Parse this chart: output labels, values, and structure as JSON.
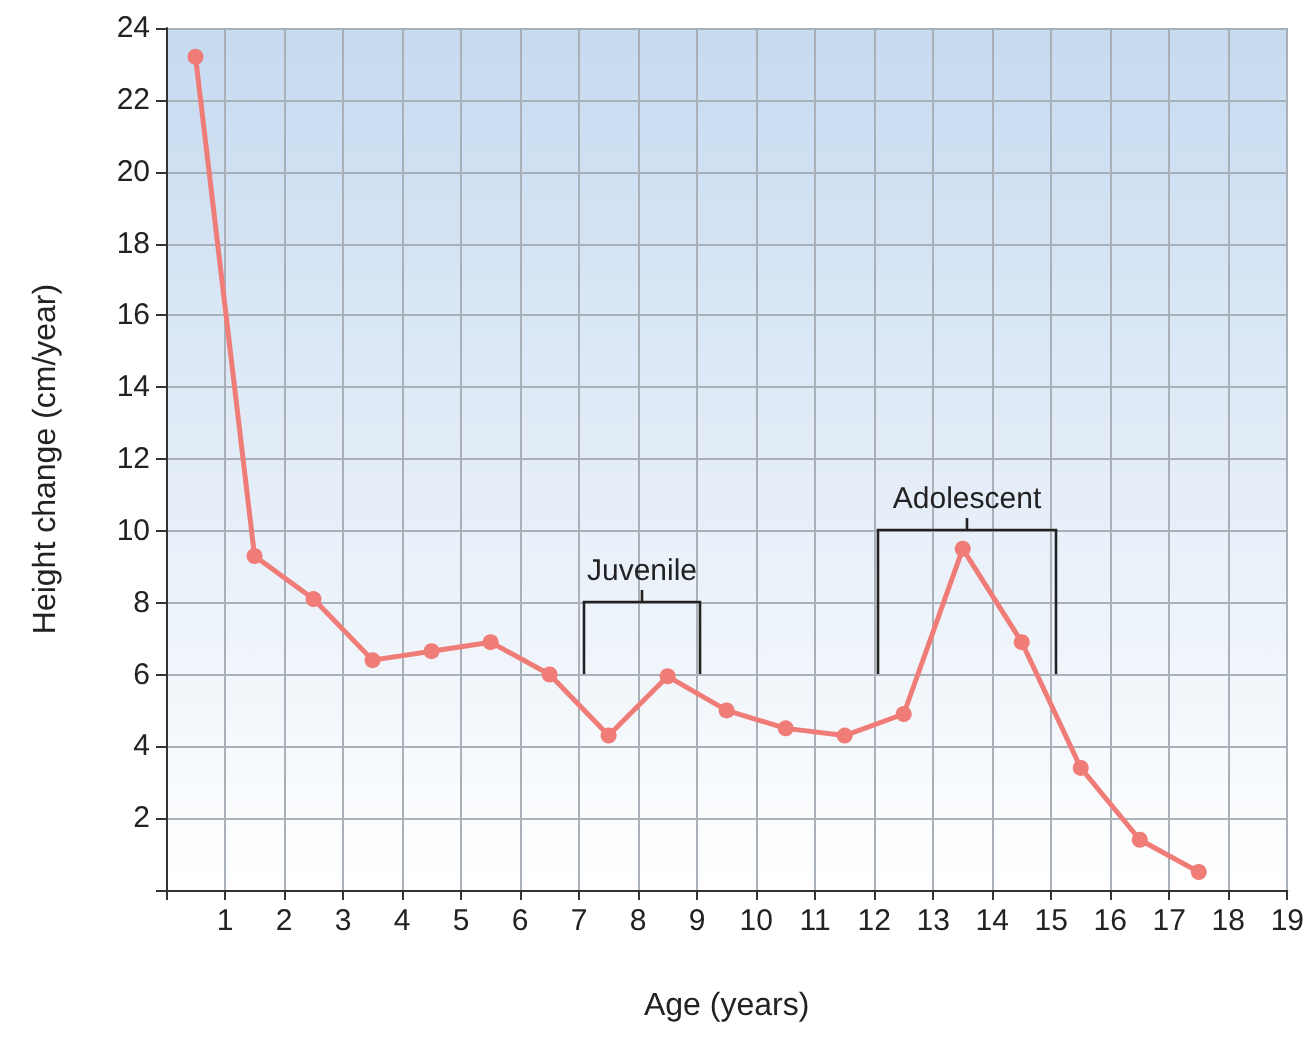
{
  "chart_data": {
    "type": "line",
    "xlabel": "Age (years)",
    "ylabel": "Height change (cm/year)",
    "x": [
      0.5,
      1.5,
      2.5,
      3.5,
      4.5,
      5.5,
      6.5,
      7.5,
      8.5,
      9.5,
      10.5,
      11.5,
      12.5,
      13.5,
      14.5,
      15.5,
      16.5,
      17.5
    ],
    "series": [
      {
        "color": "#f07c78",
        "values": [
          23.2,
          9.3,
          8.1,
          6.4,
          6.65,
          6.9,
          6.0,
          4.3,
          5.95,
          5.0,
          4.5,
          4.3,
          4.9,
          9.5,
          6.9,
          3.4,
          1.4,
          0.5
        ]
      }
    ],
    "xlim": [
      0,
      19
    ],
    "xticks": [
      {
        "value": 0,
        "label": null
      },
      1,
      2,
      3,
      4,
      5,
      6,
      7,
      8,
      9,
      10,
      11,
      12,
      13,
      14,
      15,
      16,
      17,
      18,
      19
    ],
    "ylim": [
      0,
      24
    ],
    "yticks": [
      {
        "value": 0,
        "label": null
      },
      2,
      4,
      6,
      8,
      10,
      12,
      14,
      16,
      18,
      20,
      22,
      24
    ],
    "annotations": [
      "Juvenile",
      "Adolescent"
    ],
    "grid": true,
    "marker": "circle",
    "line_style": "solid"
  }
}
